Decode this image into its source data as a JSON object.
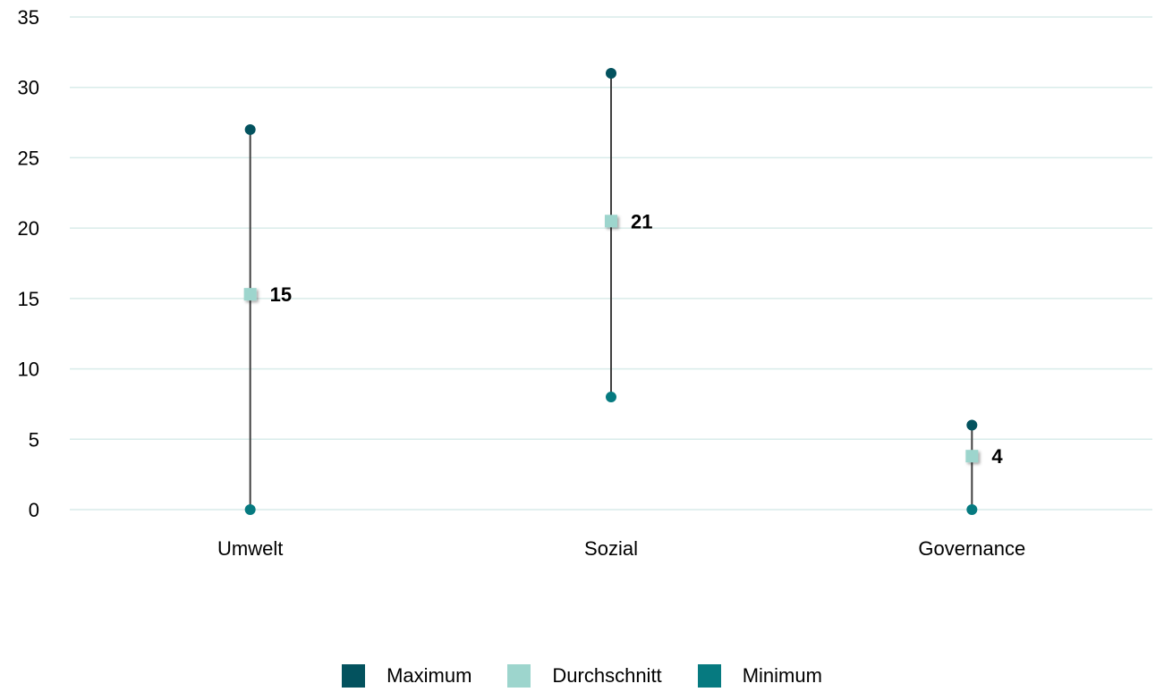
{
  "chart_data": {
    "type": "range-dot",
    "categories": [
      "Umwelt",
      "Sozial",
      "Governance"
    ],
    "series": [
      {
        "name": "Maximum",
        "values": [
          27,
          31,
          6
        ],
        "color": "#03525e",
        "marker": "circle"
      },
      {
        "name": "Durchschnitt",
        "values": [
          15.3,
          20.5,
          3.8
        ],
        "color": "#9dd5cd",
        "marker": "square"
      },
      {
        "name": "Minimum",
        "values": [
          0,
          8,
          0
        ],
        "color": "#067a80",
        "marker": "circle"
      }
    ],
    "data_labels": [
      "15",
      "21",
      "4"
    ],
    "y_ticks": [
      "0",
      "5",
      "10",
      "15",
      "20",
      "25",
      "30",
      "35"
    ],
    "ylim": [
      0,
      35
    ],
    "grid": true,
    "legend_position": "bottom",
    "colors": {
      "grid": "#d9ecea",
      "range_line": "#404040"
    }
  }
}
